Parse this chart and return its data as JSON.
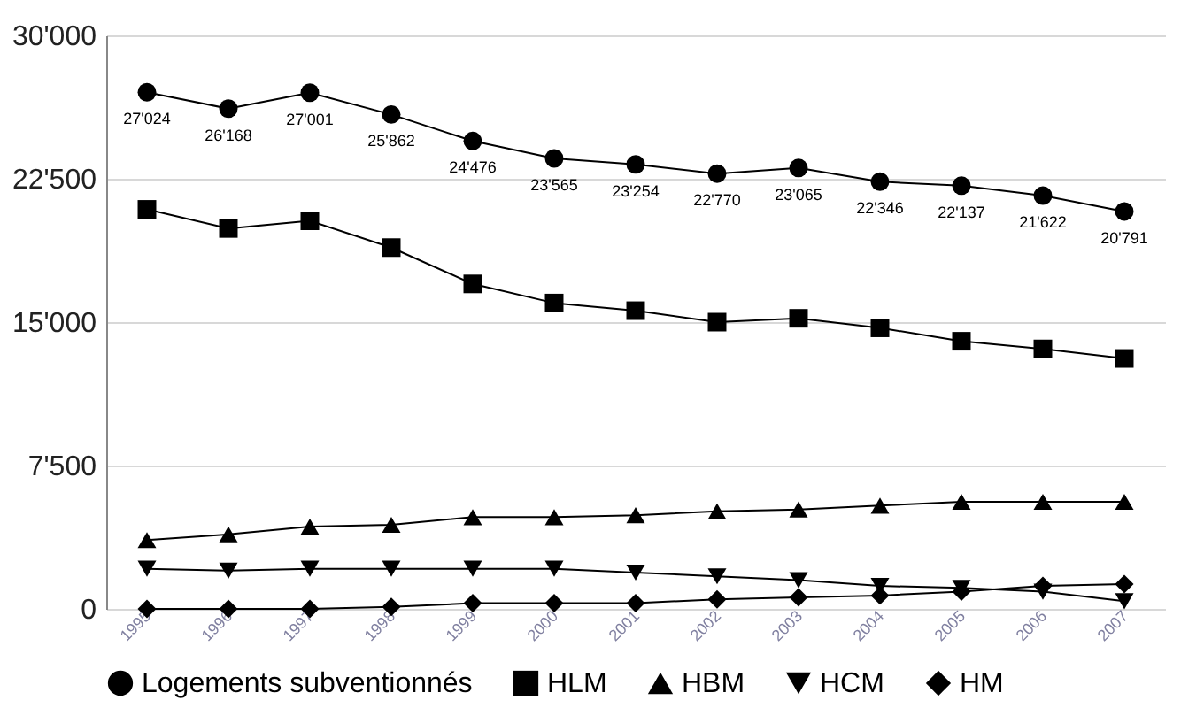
{
  "chart_data": {
    "type": "line",
    "categories": [
      "1995",
      "1996",
      "1997",
      "1998",
      "1999",
      "2000",
      "2001",
      "2002",
      "2003",
      "2004",
      "2005",
      "2006",
      "2007"
    ],
    "ylim": [
      0,
      30000
    ],
    "yticks": [
      0,
      {
        "value": 7500,
        "label": "7'500"
      },
      {
        "value": 15000,
        "label": "15'000"
      },
      {
        "value": 22500,
        "label": "22'500"
      },
      {
        "value": 30000,
        "label": "30'000"
      }
    ],
    "grid": "y",
    "legend": "bottom",
    "series": [
      {
        "name": "Logements subventionnés",
        "color": "#000000",
        "marker": "circle",
        "values": [
          27024,
          26168,
          27001,
          25862,
          24476,
          23565,
          23254,
          22770,
          23065,
          22346,
          22137,
          21622,
          20791
        ],
        "value_labels": [
          "27'024",
          "26'168",
          "27'001",
          "25'862",
          "24'476",
          "23'565",
          "23'254",
          "22'770",
          "23'065",
          "22'346",
          "22'137",
          "21'622",
          "20'791"
        ]
      },
      {
        "name": "HLM",
        "color": "#000000",
        "marker": "square",
        "values": [
          20900,
          19900,
          20300,
          18900,
          17000,
          16000,
          15600,
          15000,
          15200,
          14700,
          14000,
          13600,
          13100
        ]
      },
      {
        "name": "HBM",
        "color": "#000000",
        "marker": "triangle",
        "values": [
          3600,
          3900,
          4300,
          4400,
          4800,
          4800,
          4900,
          5100,
          5200,
          5400,
          5600,
          5600,
          5600
        ]
      },
      {
        "name": "HCM",
        "color": "#000000",
        "marker": "triangle-down",
        "values": [
          2100,
          2000,
          2100,
          2100,
          2100,
          2100,
          1900,
          1700,
          1500,
          1200,
          1100,
          900,
          400
        ]
      },
      {
        "name": "HM",
        "color": "#000000",
        "marker": "diamond",
        "values": [
          0,
          0,
          0,
          100,
          300,
          300,
          300,
          500,
          600,
          700,
          900,
          1200,
          1300
        ]
      }
    ]
  }
}
